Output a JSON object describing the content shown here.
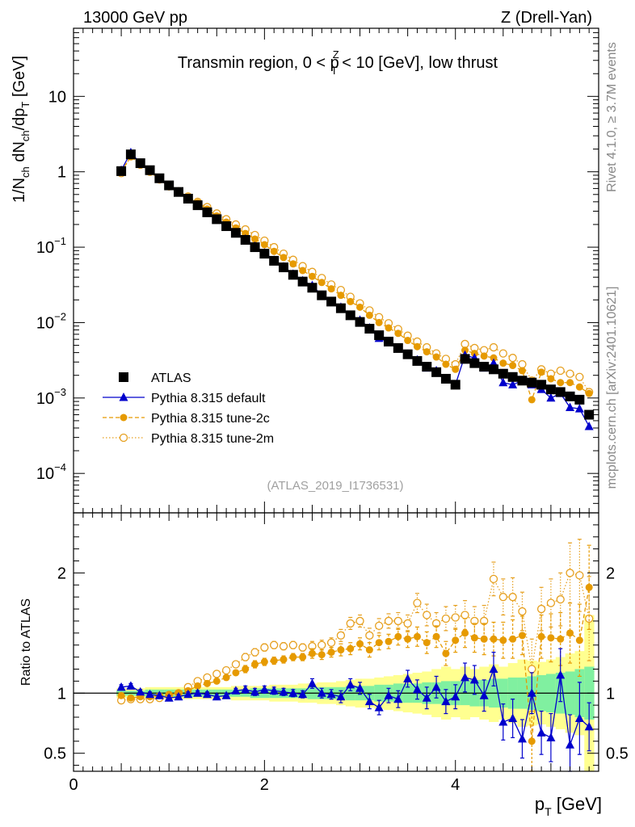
{
  "header": {
    "left": "13000 GeV pp",
    "right": "Z (Drell-Yan)"
  },
  "side_labels": {
    "rivet": "Rivet 4.1.0, ≥ 3.7M events",
    "mcplots": "mcplots.cern.ch [arXiv:2401.10621]"
  },
  "colors": {
    "atlas": "#000000",
    "default": "#0000cc",
    "tune2c": "#e69a00",
    "tune2m": "#e6a020",
    "band_green": "#80f0a0",
    "band_yellow": "#ffff90"
  },
  "chart_data": [
    {
      "type": "scatter",
      "title": "Transmin region, 0 < p_T^Z < 10 [GeV], low thrust",
      "title_parts": {
        "pre": "Transmin region, 0 < p",
        "sup": "Z",
        "sub": "T",
        "post": " < 10 [GeV], low thrust"
      },
      "ylabel": "1/N_ch dN_ch/dp_T [GeV]",
      "ylabel_parts": {
        "a": "1/N",
        "a_sub": "ch",
        "b": " dN",
        "b_sub": "ch",
        "c": "/dp",
        "c_sub": "T",
        "d": " [GeV]"
      },
      "yscale": "log",
      "ylim": [
        3e-05,
        80
      ],
      "xlim": [
        0,
        5.5
      ],
      "ytick_labels": [
        {
          "value": 10,
          "base": "10",
          "exp": ""
        },
        {
          "value": 1,
          "base": "1",
          "exp": ""
        },
        {
          "value": 0.1,
          "base": "10",
          "exp": "−1"
        },
        {
          "value": 0.01,
          "base": "10",
          "exp": "−2"
        },
        {
          "value": 0.001,
          "base": "10",
          "exp": "−3"
        },
        {
          "value": 0.0001,
          "base": "10",
          "exp": "−4"
        }
      ],
      "watermark": "(ATLAS_2019_I1736531)",
      "legend_position": "bottom-left",
      "legend": [
        {
          "key": "atlas",
          "label": "ATLAS"
        },
        {
          "key": "default",
          "label": "Pythia 8.315 default"
        },
        {
          "key": "tune2c",
          "label": "Pythia 8.315 tune-2c"
        },
        {
          "key": "tune2m",
          "label": "Pythia 8.315 tune-2m"
        }
      ],
      "x": [
        0.5,
        0.6,
        0.7,
        0.8,
        0.9,
        1.0,
        1.1,
        1.2,
        1.3,
        1.4,
        1.5,
        1.6,
        1.7,
        1.8,
        1.9,
        2.0,
        2.1,
        2.2,
        2.3,
        2.4,
        2.5,
        2.6,
        2.7,
        2.8,
        2.9,
        3.0,
        3.1,
        3.2,
        3.3,
        3.4,
        3.5,
        3.6,
        3.7,
        3.8,
        3.9,
        4.0,
        4.1,
        4.2,
        4.3,
        4.4,
        4.5,
        4.6,
        4.7,
        4.8,
        4.9,
        5.0,
        5.1,
        5.2,
        5.3,
        5.4
      ],
      "series": [
        {
          "name": "ATLAS",
          "key": "atlas",
          "values": [
            1.02,
            1.7,
            1.3,
            1.05,
            0.82,
            0.66,
            0.54,
            0.44,
            0.36,
            0.29,
            0.235,
            0.19,
            0.155,
            0.125,
            0.1,
            0.082,
            0.066,
            0.054,
            0.043,
            0.035,
            0.029,
            0.023,
            0.019,
            0.0155,
            0.0125,
            0.0102,
            0.0083,
            0.0068,
            0.0056,
            0.0046,
            0.0038,
            0.0031,
            0.0026,
            0.0022,
            0.0018,
            0.0015,
            0.0033,
            0.0029,
            0.0026,
            0.0024,
            0.0021,
            0.0019,
            0.0017,
            0.0016,
            0.0015,
            0.0013,
            0.0012,
            0.00105,
            0.00095,
            0.0006
          ]
        },
        {
          "name": "Pythia 8.315 default",
          "key": "default",
          "values": [
            1.05,
            1.8,
            1.3,
            1.04,
            0.81,
            0.64,
            0.53,
            0.44,
            0.36,
            0.29,
            0.23,
            0.185,
            0.155,
            0.128,
            0.103,
            0.084,
            0.067,
            0.055,
            0.044,
            0.036,
            0.031,
            0.023,
            0.019,
            0.016,
            0.0125,
            0.0108,
            0.0085,
            0.0062,
            0.0055,
            0.0045,
            0.0038,
            0.0032,
            0.0025,
            0.0023,
            0.0018,
            0.0015,
            0.0037,
            0.0034,
            0.0025,
            0.0029,
            0.0016,
            0.0015,
            0.0017,
            0.0015,
            0.0013,
            0.001,
            0.00115,
            0.00075,
            0.00072,
            0.00042
          ]
        },
        {
          "name": "Pythia 8.315 tune-2c",
          "key": "tune2c",
          "values": [
            1.0,
            1.6,
            1.25,
            1.02,
            0.8,
            0.65,
            0.55,
            0.46,
            0.39,
            0.32,
            0.26,
            0.215,
            0.18,
            0.152,
            0.128,
            0.108,
            0.088,
            0.073,
            0.06,
            0.049,
            0.041,
            0.034,
            0.028,
            0.023,
            0.019,
            0.016,
            0.0125,
            0.01,
            0.0085,
            0.0072,
            0.0058,
            0.0048,
            0.0041,
            0.0035,
            0.0028,
            0.0024,
            0.0043,
            0.0039,
            0.0036,
            0.0034,
            0.0029,
            0.0027,
            0.0023,
            0.00095,
            0.0022,
            0.0018,
            0.0016,
            0.0016,
            0.0014,
            0.00115
          ]
        },
        {
          "name": "Pythia 8.315 tune-2m",
          "key": "tune2m",
          "values": [
            0.96,
            1.6,
            1.24,
            1.0,
            0.79,
            0.64,
            0.55,
            0.47,
            0.4,
            0.34,
            0.28,
            0.235,
            0.2,
            0.172,
            0.145,
            0.122,
            0.1,
            0.082,
            0.068,
            0.056,
            0.047,
            0.039,
            0.032,
            0.027,
            0.022,
            0.018,
            0.0145,
            0.0118,
            0.0098,
            0.0082,
            0.0067,
            0.0056,
            0.0047,
            0.0039,
            0.0033,
            0.0028,
            0.0052,
            0.0046,
            0.0043,
            0.0047,
            0.0039,
            0.0034,
            0.0028,
            0.0017,
            0.0024,
            0.0021,
            0.0023,
            0.0021,
            0.0019,
            0.0012
          ]
        }
      ]
    },
    {
      "type": "scatter",
      "ylabel": "Ratio to ATLAS",
      "xlabel": "p_T [GeV]",
      "xlabel_parts": {
        "a": "p",
        "a_sub": "T",
        "b": " [GeV]"
      },
      "ylim": [
        0.35,
        2.5
      ],
      "xlim": [
        0,
        5.5
      ],
      "xtick_labels": [
        {
          "value": 0,
          "label": "0"
        },
        {
          "value": 2,
          "label": "2"
        },
        {
          "value": 4,
          "label": "4"
        }
      ],
      "ytick_labels": [
        {
          "value": 0.5,
          "label": "0.5"
        },
        {
          "value": 1,
          "label": "1"
        },
        {
          "value": 2,
          "label": "2"
        }
      ],
      "band_green_halfwidth": [
        0.02,
        0.02,
        0.02,
        0.03,
        0.03,
        0.03,
        0.03,
        0.03,
        0.03,
        0.03,
        0.03,
        0.03,
        0.03,
        0.03,
        0.04,
        0.04,
        0.04,
        0.04,
        0.04,
        0.04,
        0.05,
        0.05,
        0.05,
        0.05,
        0.06,
        0.06,
        0.06,
        0.07,
        0.07,
        0.08,
        0.08,
        0.08,
        0.09,
        0.09,
        0.1,
        0.1,
        0.1,
        0.11,
        0.11,
        0.12,
        0.12,
        0.13,
        0.13,
        0.14,
        0.15,
        0.16,
        0.17,
        0.18,
        0.2,
        0.22
      ],
      "band_yellow_halfwidth": [
        0.04,
        0.04,
        0.04,
        0.05,
        0.05,
        0.05,
        0.05,
        0.05,
        0.05,
        0.05,
        0.05,
        0.05,
        0.06,
        0.06,
        0.06,
        0.06,
        0.07,
        0.07,
        0.07,
        0.08,
        0.08,
        0.09,
        0.09,
        0.1,
        0.11,
        0.12,
        0.12,
        0.13,
        0.14,
        0.15,
        0.16,
        0.17,
        0.18,
        0.2,
        0.22,
        0.2,
        0.22,
        0.2,
        0.22,
        0.24,
        0.22,
        0.25,
        0.28,
        0.27,
        0.26,
        0.28,
        0.3,
        0.33,
        0.35,
        0.65
      ],
      "series": [
        {
          "name": "Pythia 8.315 default",
          "key": "default",
          "values": [
            1.05,
            1.06,
            1.01,
            0.99,
            0.98,
            0.96,
            0.97,
            0.99,
            1.0,
            0.99,
            0.97,
            0.98,
            1.02,
            1.03,
            1.01,
            1.03,
            1.02,
            1.01,
            1.0,
            0.99,
            1.08,
            1.0,
            0.99,
            0.97,
            1.07,
            1.04,
            0.93,
            0.88,
            0.98,
            0.95,
            1.12,
            1.03,
            0.96,
            1.05,
            0.93,
            0.97,
            1.13,
            1.11,
            0.98,
            1.2,
            0.76,
            0.79,
            0.62,
            1.0,
            0.67,
            0.63,
            1.15,
            0.57,
            0.79,
            0.72
          ],
          "err": [
            0.02,
            0.02,
            0.02,
            0.02,
            0.02,
            0.02,
            0.02,
            0.02,
            0.02,
            0.02,
            0.02,
            0.02,
            0.02,
            0.03,
            0.03,
            0.03,
            0.03,
            0.03,
            0.03,
            0.03,
            0.04,
            0.04,
            0.04,
            0.05,
            0.05,
            0.05,
            0.06,
            0.06,
            0.06,
            0.07,
            0.07,
            0.08,
            0.09,
            0.09,
            0.1,
            0.1,
            0.12,
            0.12,
            0.13,
            0.14,
            0.15,
            0.16,
            0.16,
            0.17,
            0.18,
            0.2,
            0.22,
            0.25,
            0.3,
            0.2
          ]
        },
        {
          "name": "Pythia 8.315 tune-2c",
          "key": "tune2c",
          "values": [
            0.98,
            0.96,
            0.97,
            0.97,
            0.98,
            0.99,
            1.0,
            1.02,
            1.06,
            1.08,
            1.1,
            1.13,
            1.17,
            1.2,
            1.24,
            1.26,
            1.27,
            1.28,
            1.3,
            1.3,
            1.33,
            1.32,
            1.34,
            1.36,
            1.37,
            1.41,
            1.36,
            1.42,
            1.43,
            1.47,
            1.45,
            1.47,
            1.42,
            1.47,
            1.33,
            1.44,
            1.5,
            1.46,
            1.45,
            1.45,
            1.44,
            1.45,
            1.48,
            0.6,
            1.47,
            1.46,
            1.45,
            1.5,
            1.44,
            1.88
          ],
          "err": [
            0.02,
            0.02,
            0.02,
            0.02,
            0.02,
            0.02,
            0.02,
            0.02,
            0.02,
            0.02,
            0.02,
            0.02,
            0.02,
            0.03,
            0.03,
            0.03,
            0.03,
            0.03,
            0.03,
            0.03,
            0.04,
            0.04,
            0.04,
            0.05,
            0.05,
            0.05,
            0.06,
            0.06,
            0.06,
            0.07,
            0.07,
            0.08,
            0.09,
            0.09,
            0.1,
            0.1,
            0.12,
            0.12,
            0.13,
            0.14,
            0.15,
            0.16,
            0.16,
            0.25,
            0.18,
            0.2,
            0.22,
            0.25,
            0.3,
            0.35
          ]
        },
        {
          "name": "Pythia 8.315 tune-2m",
          "key": "tune2m",
          "values": [
            0.94,
            0.95,
            0.95,
            0.95,
            0.96,
            0.98,
            1.0,
            1.05,
            1.1,
            1.13,
            1.16,
            1.19,
            1.24,
            1.3,
            1.34,
            1.38,
            1.4,
            1.39,
            1.4,
            1.38,
            1.39,
            1.4,
            1.42,
            1.48,
            1.58,
            1.6,
            1.48,
            1.56,
            1.6,
            1.6,
            1.58,
            1.75,
            1.65,
            1.58,
            1.62,
            1.63,
            1.65,
            1.6,
            1.6,
            1.95,
            1.8,
            1.8,
            1.68,
            1.2,
            1.7,
            1.75,
            1.78,
            2.0,
            1.98,
            1.62
          ],
          "err": [
            0.02,
            0.02,
            0.02,
            0.02,
            0.02,
            0.02,
            0.02,
            0.02,
            0.02,
            0.02,
            0.02,
            0.02,
            0.02,
            0.03,
            0.03,
            0.03,
            0.03,
            0.03,
            0.03,
            0.03,
            0.04,
            0.04,
            0.04,
            0.05,
            0.05,
            0.05,
            0.06,
            0.06,
            0.06,
            0.07,
            0.07,
            0.08,
            0.09,
            0.09,
            0.1,
            0.1,
            0.12,
            0.12,
            0.13,
            0.14,
            0.15,
            0.16,
            0.16,
            0.25,
            0.18,
            0.2,
            0.22,
            0.25,
            0.3,
            0.35
          ]
        }
      ]
    }
  ]
}
